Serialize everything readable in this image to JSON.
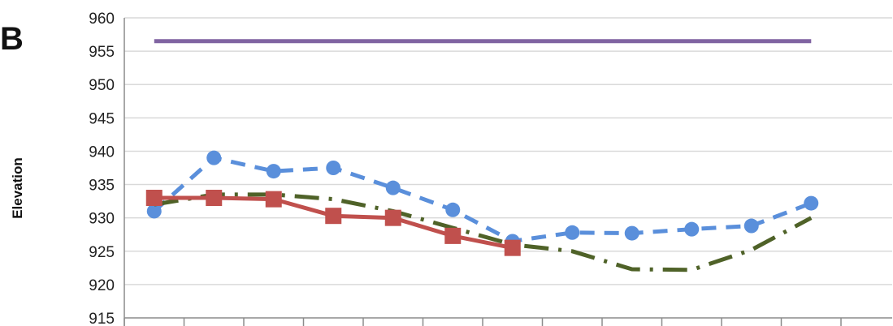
{
  "panel_label": "B",
  "chart_data": {
    "type": "line",
    "ylabel": "Elevation",
    "xlabel": "",
    "title": "",
    "ylim": [
      915,
      960
    ],
    "yticks": [
      915,
      920,
      925,
      930,
      935,
      940,
      945,
      950,
      955,
      960
    ],
    "grid": true,
    "x_count": 12,
    "series": [
      {
        "color": "#8064A2",
        "style": "solid",
        "marker": "none",
        "x": [
          0,
          11
        ],
        "values": [
          956.5,
          956.5
        ]
      },
      {
        "color": "#5A8FDB",
        "style": "dashed",
        "marker": "circle",
        "x": [
          0,
          1,
          2,
          3,
          4,
          5,
          6,
          7,
          8,
          9,
          10,
          11
        ],
        "values": [
          931.0,
          939.0,
          937.0,
          937.5,
          934.5,
          931.2,
          926.5,
          927.8,
          927.7,
          928.3,
          928.8,
          932.2
        ]
      },
      {
        "color": "#4F6228",
        "style": "dashdot",
        "marker": "none",
        "x": [
          0,
          1,
          2,
          3,
          4,
          5,
          6,
          7,
          8,
          9,
          10,
          11
        ],
        "values": [
          932.0,
          933.5,
          933.5,
          932.8,
          931.0,
          928.5,
          926.0,
          925.0,
          922.3,
          922.2,
          925.2,
          930.0
        ]
      },
      {
        "color": "#C0504D",
        "style": "solid",
        "marker": "square",
        "x": [
          0,
          1,
          2,
          3,
          4,
          5,
          6
        ],
        "values": [
          933.0,
          933.0,
          932.8,
          930.3,
          930.0,
          927.3,
          925.5
        ]
      }
    ]
  }
}
